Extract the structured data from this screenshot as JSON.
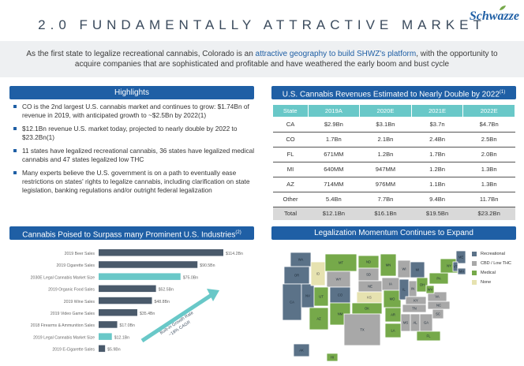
{
  "header": {
    "title": "2.0  FUNDAMENTALLY ATTRACTIVE MARKET",
    "logo": "Schwazze"
  },
  "intro": {
    "before": "As the first state to legalize recreational cannabis, Colorado is an ",
    "highlight": "attractive geography to build SHWZ's platform",
    "after": ", with the opportunity to acquire companies that are sophisticated and profitable and have weathered the early boom and bust cycle"
  },
  "highlights": {
    "title": "Highlights",
    "items": [
      "CO is the 2nd largest U.S. cannabis market and continues to grow: $1.74Bn of revenue in 2019, with anticipated growth to ~$2.5Bn by 2022(1)",
      "$12.1Bn revenue U.S. market today, projected to nearly double by 2022 to $23.2Bn(1)",
      "11 states have legalized recreational cannabis, 36 states have legalized medical cannabis and 47 states legalized low THC",
      "Many experts believe the U.S. government is on a path to eventually ease restrictions on states' rights to legalize cannabis, including clarification on state legislation, banking regulations and/or outright federal legalization"
    ]
  },
  "revenue": {
    "title": "U.S. Cannabis Revenues Estimated to Nearly Double by 2022",
    "title_sup": "(1)",
    "columns": [
      "State",
      "2019A",
      "2020E",
      "2021E",
      "2022E"
    ],
    "rows": [
      [
        "CA",
        "$2.9Bn",
        "$3.1Bn",
        "$3.7n",
        "$4.7Bn"
      ],
      [
        "CO",
        "1.7Bn",
        "2.1Bn",
        "2.4Bn",
        "2.5Bn"
      ],
      [
        "FL",
        "671MM",
        "1.2Bn",
        "1.7Bn",
        "2.0Bn"
      ],
      [
        "MI",
        "640MM",
        "947MM",
        "1.2Bn",
        "1.3Bn"
      ],
      [
        "AZ",
        "714MM",
        "976MM",
        "1.1Bn",
        "1.3Bn"
      ],
      [
        "Other",
        "5.4Bn",
        "7.7Bn",
        "9.4Bn",
        "11.7Bn"
      ]
    ],
    "total": [
      "Total",
      "$12.1Bn",
      "$16.1Bn",
      "$19.5Bn",
      "$23.2Bn"
    ]
  },
  "industries": {
    "title": "Cannabis Poised to Surpass many Prominent U.S. Industries",
    "title_sup": "(2)",
    "annotation_line1": "Built-in Growth Rate",
    "annotation_line2": "~18% CAGR",
    "accent_color": "#69c8c8",
    "bar_color": "#4a5a6b"
  },
  "chart_data": {
    "type": "bar",
    "orientation": "horizontal",
    "categories": [
      "2019 Beer Sales",
      "2019 Cigarette Sales",
      "2030E Legal Cannabis Market Size",
      "2019 Organic Food Sales",
      "2019 Wine Sales",
      "2019 Video Game Sales",
      "2018 Firearms & Ammunition Sales",
      "2019 Legal Cannabis Market Size",
      "2019 E-Cigarette Sales"
    ],
    "values": [
      114.2,
      90.5,
      75.0,
      52.5,
      48.8,
      35.4,
      17.0,
      12.1,
      5.9
    ],
    "value_labels": [
      "$114.2Bn",
      "$90.5Bn",
      "$75.0Bn",
      "$52.5Bn",
      "$48.8Bn",
      "$35.4Bn",
      "$17.0Bn",
      "$12.1Bn",
      "$5.9Bn"
    ],
    "highlighted": [
      false,
      false,
      true,
      false,
      false,
      false,
      false,
      true,
      false
    ]
  },
  "legalization": {
    "title": "Legalization Momentum Continues to Expand",
    "legend": [
      {
        "label": "Recreational",
        "color": "#5b7288"
      },
      {
        "label": "CBD / Low THC",
        "color": "#a8a8a8"
      },
      {
        "label": "Medical",
        "color": "#76a94a"
      },
      {
        "label": "None",
        "color": "#e6e2b0"
      }
    ],
    "states": [
      {
        "abbr": "WA",
        "status": "Recreational"
      },
      {
        "abbr": "OR",
        "status": "Recreational"
      },
      {
        "abbr": "CA",
        "status": "Recreational"
      },
      {
        "abbr": "NV",
        "status": "Recreational"
      },
      {
        "abbr": "ID",
        "status": "None"
      },
      {
        "abbr": "MT",
        "status": "Medical"
      },
      {
        "abbr": "WY",
        "status": "CBD / Low THC"
      },
      {
        "abbr": "UT",
        "status": "Medical"
      },
      {
        "abbr": "CO",
        "status": "Recreational"
      },
      {
        "abbr": "AZ",
        "status": "Medical"
      },
      {
        "abbr": "NM",
        "status": "Medical"
      },
      {
        "abbr": "ND",
        "status": "Medical"
      },
      {
        "abbr": "SD",
        "status": "CBD / Low THC"
      },
      {
        "abbr": "NE",
        "status": "CBD / Low THC"
      },
      {
        "abbr": "KS",
        "status": "None"
      },
      {
        "abbr": "OK",
        "status": "Medical"
      },
      {
        "abbr": "TX",
        "status": "CBD / Low THC"
      },
      {
        "abbr": "MN",
        "status": "Medical"
      },
      {
        "abbr": "IA",
        "status": "CBD / Low THC"
      },
      {
        "abbr": "MO",
        "status": "Medical"
      },
      {
        "abbr": "AR",
        "status": "Medical"
      },
      {
        "abbr": "LA",
        "status": "Medical"
      },
      {
        "abbr": "WI",
        "status": "CBD / Low THC"
      },
      {
        "abbr": "IL",
        "status": "Recreational"
      },
      {
        "abbr": "MI",
        "status": "Recreational"
      },
      {
        "abbr": "IN",
        "status": "CBD / Low THC"
      },
      {
        "abbr": "OH",
        "status": "Medical"
      },
      {
        "abbr": "KY",
        "status": "CBD / Low THC"
      },
      {
        "abbr": "TN",
        "status": "CBD / Low THC"
      },
      {
        "abbr": "MS",
        "status": "CBD / Low THC"
      },
      {
        "abbr": "AL",
        "status": "CBD / Low THC"
      },
      {
        "abbr": "GA",
        "status": "CBD / Low THC"
      },
      {
        "abbr": "FL",
        "status": "Medical"
      },
      {
        "abbr": "SC",
        "status": "CBD / Low THC"
      },
      {
        "abbr": "NC",
        "status": "CBD / Low THC"
      },
      {
        "abbr": "VA",
        "status": "CBD / Low THC"
      },
      {
        "abbr": "WV",
        "status": "Medical"
      },
      {
        "abbr": "PA",
        "status": "Medical"
      },
      {
        "abbr": "NY",
        "status": "Medical"
      },
      {
        "abbr": "ME",
        "status": "Recreational"
      },
      {
        "abbr": "VT",
        "status": "Recreational"
      },
      {
        "abbr": "MA",
        "status": "Recreational"
      },
      {
        "abbr": "AK",
        "status": "Recreational"
      },
      {
        "abbr": "HI",
        "status": "Medical"
      }
    ]
  }
}
